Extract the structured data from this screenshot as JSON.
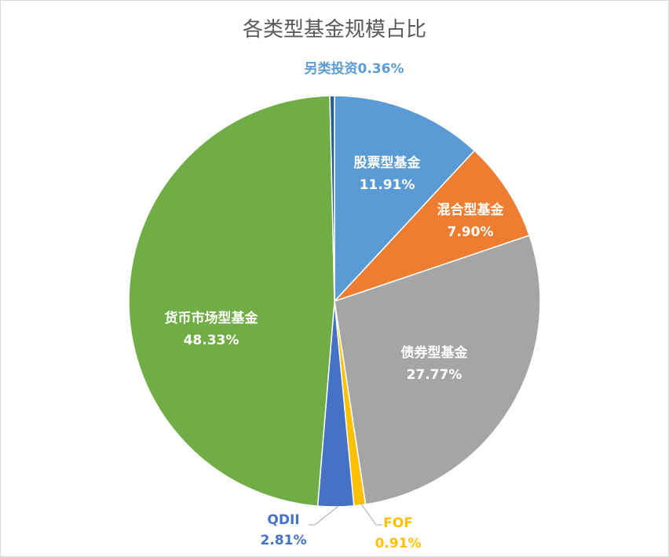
{
  "chart_data": {
    "type": "pie",
    "title": "各类型基金规模占比",
    "start_angle": "12 o'clock, clockwise",
    "legend": "none",
    "slices": [
      {
        "label": "股票型基金",
        "value": 11.91,
        "value_label": "11.91%",
        "color": "#5B9BD5",
        "label_color": "#FFFFFF"
      },
      {
        "label": "混合型基金",
        "value": 7.9,
        "value_label": "7.90%",
        "color": "#ED7D31",
        "label_color": "#FFFFFF"
      },
      {
        "label": "债券型基金",
        "value": 27.77,
        "value_label": "27.77%",
        "color": "#A5A5A5",
        "label_color": "#FFFFFF"
      },
      {
        "label": "FOF",
        "value": 0.91,
        "value_label": "0.91%",
        "color": "#FFC000",
        "label_color": "#FFC000"
      },
      {
        "label": "QDII",
        "value": 2.81,
        "value_label": "2.81%",
        "color": "#4472C4",
        "label_color": "#4472C4"
      },
      {
        "label": "货币市场型基金",
        "value": 48.33,
        "value_label": "48.33%",
        "color": "#70AD47",
        "label_color": "#FFFFFF"
      },
      {
        "label": "另类投资",
        "value": 0.36,
        "value_label": "0.36%",
        "color": "#255E91",
        "label_color": "#5B9BD5"
      }
    ]
  }
}
